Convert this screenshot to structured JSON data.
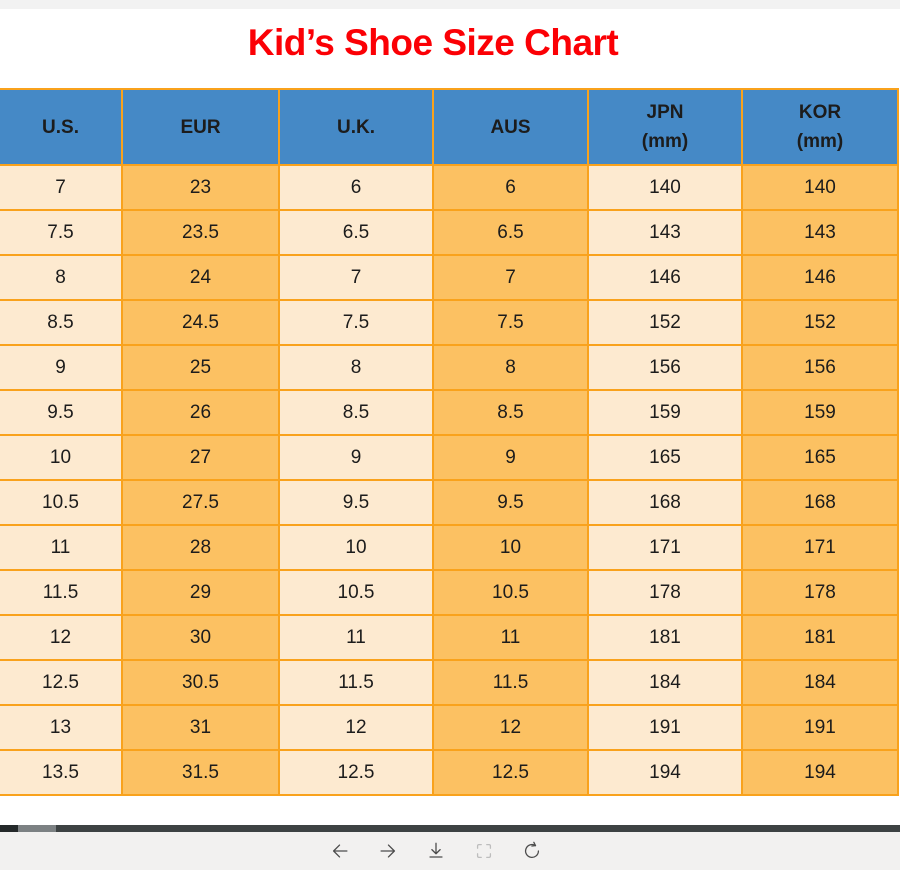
{
  "page": {
    "title_text": "Kid’s Shoe Size Chart"
  },
  "table": {
    "headers": [
      {
        "label": "U.S.",
        "sub": ""
      },
      {
        "label": "EUR",
        "sub": ""
      },
      {
        "label": "U.K.",
        "sub": ""
      },
      {
        "label": "AUS",
        "sub": ""
      },
      {
        "label": "JPN",
        "sub": "(mm)"
      },
      {
        "label": "KOR",
        "sub": "(mm)"
      }
    ],
    "rows": [
      [
        "7",
        "23",
        "6",
        "6",
        "140",
        "140"
      ],
      [
        "7.5",
        "23.5",
        "6.5",
        "6.5",
        "143",
        "143"
      ],
      [
        "8",
        "24",
        "7",
        "7",
        "146",
        "146"
      ],
      [
        "8.5",
        "24.5",
        "7.5",
        "7.5",
        "152",
        "152"
      ],
      [
        "9",
        "25",
        "8",
        "8",
        "156",
        "156"
      ],
      [
        "9.5",
        "26",
        "8.5",
        "8.5",
        "159",
        "159"
      ],
      [
        "10",
        "27",
        "9",
        "9",
        "165",
        "165"
      ],
      [
        "10.5",
        "27.5",
        "9.5",
        "9.5",
        "168",
        "168"
      ],
      [
        "11",
        "28",
        "10",
        "10",
        "171",
        "171"
      ],
      [
        "11.5",
        "29",
        "10.5",
        "10.5",
        "178",
        "178"
      ],
      [
        "12",
        "30",
        "11",
        "11",
        "181",
        "181"
      ],
      [
        "12.5",
        "30.5",
        "11.5",
        "11.5",
        "184",
        "184"
      ],
      [
        "13",
        "31",
        "12",
        "12",
        "191",
        "191"
      ],
      [
        "13.5",
        "31.5",
        "12.5",
        "12.5",
        "194",
        "194"
      ]
    ],
    "column_style": [
      "light",
      "orange",
      "light",
      "orange",
      "light",
      "orange"
    ]
  },
  "toolbar": {
    "icons": [
      {
        "name": "back-icon",
        "enabled": true
      },
      {
        "name": "forward-icon",
        "enabled": true
      },
      {
        "name": "download-icon",
        "enabled": true
      },
      {
        "name": "fit-to-screen-icon",
        "enabled": false
      },
      {
        "name": "refresh-icon",
        "enabled": true
      }
    ]
  },
  "colors": {
    "title_red": "#fb0005",
    "header_blue": "#4589c6",
    "cell_orange": "#fcc162",
    "cell_light": "#fdead0",
    "grid_orange": "#f9a21c"
  }
}
